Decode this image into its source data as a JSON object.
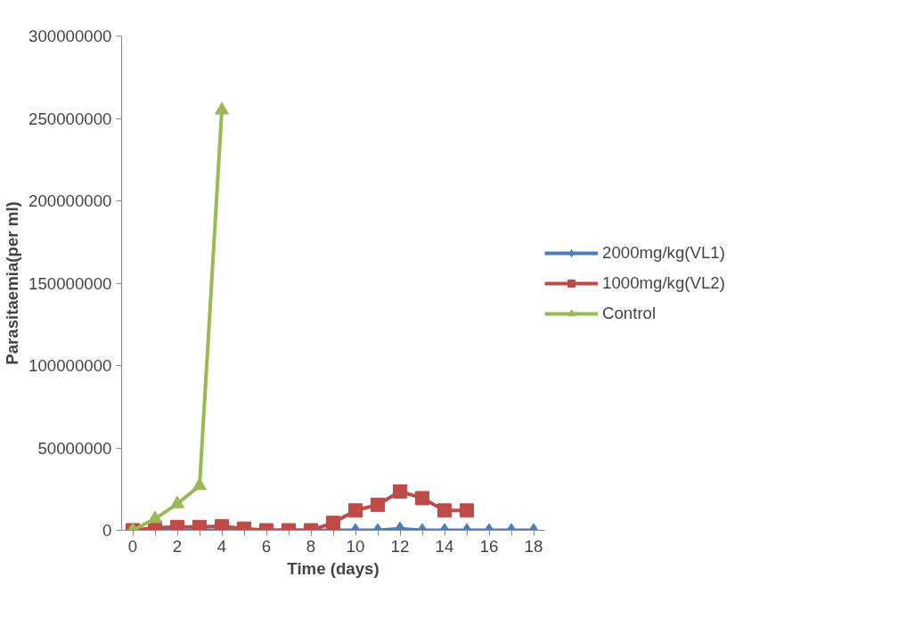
{
  "chart_data": {
    "type": "line",
    "xlabel": "Time (days)",
    "ylabel": "Parasitaemia(per ml)",
    "xlim": [
      -0.5,
      18.5
    ],
    "ylim": [
      0,
      300000000
    ],
    "xticks": [
      0,
      {
        "value": 1,
        "label": null
      },
      2,
      {
        "value": 3,
        "label": null
      },
      4,
      {
        "value": 5,
        "label": null
      },
      6,
      {
        "value": 7,
        "label": null
      },
      8,
      {
        "value": 9,
        "label": null
      },
      10,
      {
        "value": 11,
        "label": null
      },
      12,
      {
        "value": 13,
        "label": null
      },
      14,
      {
        "value": 15,
        "label": null
      },
      16,
      {
        "value": 17,
        "label": null
      },
      18
    ],
    "yticks": [
      0,
      50000000,
      100000000,
      150000000,
      200000000,
      250000000,
      300000000
    ],
    "grid": false,
    "legend": "right",
    "series": [
      {
        "name": "2000mg/kg(VL1)",
        "color": "#4a7ebb",
        "marker": "diamond",
        "x": [
          0,
          1,
          2,
          3,
          4,
          5,
          6,
          7,
          8,
          9,
          10,
          11,
          12,
          13,
          14,
          15,
          16,
          17,
          18
        ],
        "values": [
          0,
          0,
          0,
          0,
          0,
          0,
          0,
          0,
          0,
          0,
          0,
          0,
          1000000,
          0,
          0,
          0,
          0,
          0,
          0
        ]
      },
      {
        "name": "1000mg/kg(VL2)",
        "color": "#be4b48",
        "marker": "square",
        "x": [
          0,
          1,
          2,
          3,
          4,
          5,
          6,
          7,
          8,
          9,
          10,
          11,
          12,
          13,
          14,
          15
        ],
        "values": [
          0,
          1500000,
          2000000,
          2000000,
          2500000,
          1000000,
          0,
          0,
          0,
          4500000,
          12000000,
          15500000,
          23500000,
          19500000,
          12000000,
          12000000
        ]
      },
      {
        "name": "Control",
        "color": "#98b954",
        "marker": "triangle",
        "x": [
          0,
          1,
          2,
          3,
          4
        ],
        "values": [
          0,
          7000000,
          16000000,
          27000000,
          255000000
        ]
      }
    ]
  }
}
